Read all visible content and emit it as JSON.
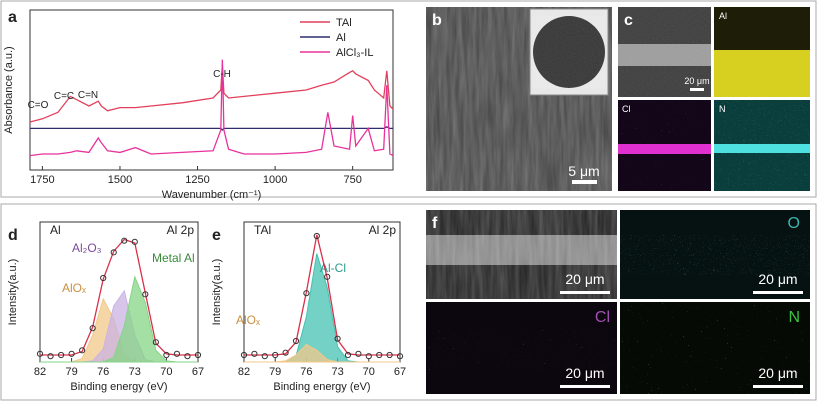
{
  "chart_data": [
    {
      "type": "line",
      "panel": "a",
      "xlabel": "Wavenumber (cm⁻¹)",
      "ylabel": "Absorbance (a.u.)",
      "x": [
        1790,
        1750,
        1700,
        1660,
        1640,
        1600,
        1570,
        1560,
        1540,
        1500,
        1450,
        1400,
        1300,
        1200,
        1175,
        1170,
        1165,
        1150,
        1100,
        1000,
        900,
        850,
        830,
        810,
        760,
        750,
        740,
        700,
        680,
        650,
        640,
        630,
        620
      ],
      "series": [
        {
          "name": "TAl",
          "color": "#e2405c",
          "values": [
            3.0,
            3.2,
            3.6,
            4.6,
            4.4,
            4.0,
            4.3,
            4.0,
            3.7,
            3.9,
            3.9,
            4.0,
            4.2,
            4.5,
            5.0,
            6.6,
            4.8,
            4.5,
            4.6,
            4.8,
            5.0,
            5.3,
            5.4,
            5.5,
            6.1,
            6.2,
            6.0,
            5.6,
            5.0,
            4.5,
            6.2,
            4.0,
            3.8
          ]
        },
        {
          "name": "Al",
          "color": "#2e2e6e",
          "values": [
            2.6,
            2.6,
            2.6,
            2.6,
            2.6,
            2.6,
            2.6,
            2.6,
            2.6,
            2.6,
            2.6,
            2.6,
            2.6,
            2.6,
            2.6,
            2.5,
            2.6,
            2.6,
            2.6,
            2.6,
            2.6,
            2.6,
            2.6,
            2.6,
            2.6,
            2.6,
            2.6,
            2.6,
            2.6,
            2.6,
            2.7,
            2.6,
            2.6
          ]
        },
        {
          "name": "AlCl₃-IL",
          "color": "#e8329c",
          "values": [
            0.9,
            1.0,
            1.0,
            1.1,
            1.2,
            1.1,
            2.0,
            1.7,
            1.2,
            1.1,
            1.4,
            1.0,
            1.1,
            1.2,
            2.5,
            6.9,
            2.5,
            1.3,
            1.0,
            1.0,
            1.1,
            1.3,
            3.6,
            1.5,
            1.3,
            3.4,
            1.5,
            2.6,
            1.2,
            1.3,
            5.3,
            1.0,
            0.9
          ]
        }
      ],
      "annotations": [
        "C=O",
        "C=C",
        "C=N",
        "C-H"
      ],
      "xlim": [
        1790,
        620
      ],
      "xticks": [
        1750,
        1500,
        1250,
        1000,
        750
      ],
      "ylim": [
        0,
        10
      ],
      "legend": "upper right"
    },
    {
      "type": "line",
      "panel": "d",
      "sample": "Al",
      "core_level": "Al 2p",
      "xlabel": "Binding energy (eV)",
      "ylabel": "Intensity(a.u.)",
      "x": [
        82,
        81,
        80,
        79,
        78,
        77,
        76,
        75,
        74,
        73,
        72,
        71,
        70,
        69,
        68,
        67
      ],
      "series": [
        {
          "name": "AlOₓ",
          "color": "#f2c88a",
          "fill": true,
          "values": [
            0,
            0,
            0,
            0,
            0.3,
            2.3,
            5.4,
            3.7,
            0.7,
            0,
            0,
            0,
            0,
            0,
            0,
            0
          ]
        },
        {
          "name": "Al₂O₃",
          "color": "#c9b3e3",
          "fill": true,
          "values": [
            0,
            0,
            0,
            0,
            0,
            0.1,
            1.1,
            4.8,
            6.1,
            2.3,
            0.2,
            0,
            0,
            0,
            0,
            0
          ]
        },
        {
          "name": "Metal Al",
          "color": "#86d486",
          "fill": true,
          "values": [
            0,
            0,
            0,
            0,
            0,
            0,
            0,
            0.4,
            3.1,
            7.3,
            5.1,
            1.0,
            0.1,
            0,
            0,
            0
          ]
        },
        {
          "color": "#d9304a",
          "values": [
            0.6,
            0.6,
            0.6,
            0.6,
            0.9,
            3.0,
            7.1,
            9.5,
            10.5,
            10.2,
            5.9,
            1.6,
            0.7,
            0.6,
            0.6,
            0.6
          ]
        },
        {
          "color": "#333333",
          "marker": "circle",
          "values": [
            0.7,
            0.5,
            0.6,
            0.7,
            1.0,
            2.9,
            7.2,
            9.4,
            10.4,
            10.3,
            5.8,
            1.7,
            0.6,
            0.7,
            0.5,
            0.6
          ]
        }
      ],
      "xlim": [
        82,
        67
      ],
      "xticks": [
        82,
        79,
        76,
        73,
        70,
        67
      ],
      "ylim": [
        0,
        12
      ]
    },
    {
      "type": "line",
      "panel": "e",
      "sample": "TAl",
      "core_level": "Al 2p",
      "xlabel": "Binding energy (eV)",
      "ylabel": "Intensity(a.u.)",
      "x": [
        82,
        81,
        80,
        79,
        78,
        77,
        76,
        75,
        74,
        73,
        72,
        71,
        70,
        69,
        68,
        67
      ],
      "series": [
        {
          "name": "Al-Cl",
          "color": "#45c2b2",
          "fill": true,
          "values": [
            0,
            0,
            0,
            0,
            0,
            0.5,
            3.9,
            9.3,
            6.4,
            1.3,
            0.1,
            0,
            0,
            0,
            0,
            0
          ]
        },
        {
          "name": "AlOₓ",
          "color": "#f2c88a",
          "fill": true,
          "values": [
            0,
            0,
            0,
            0,
            0.1,
            0.6,
            1.5,
            1.0,
            0.2,
            0,
            0,
            0,
            0,
            0,
            0,
            0
          ]
        },
        {
          "color": "#d9304a",
          "values": [
            0.6,
            0.6,
            0.6,
            0.6,
            0.7,
            1.7,
            6.0,
            10.9,
            7.2,
            1.9,
            0.7,
            0.6,
            0.6,
            0.6,
            0.6,
            0.6
          ]
        },
        {
          "color": "#333333",
          "marker": "circle",
          "values": [
            0.6,
            0.7,
            0.5,
            0.6,
            0.8,
            1.8,
            5.9,
            10.8,
            7.3,
            2.0,
            0.6,
            0.7,
            0.5,
            0.6,
            0.6,
            0.5
          ]
        }
      ],
      "xlim": [
        82,
        67
      ],
      "xticks": [
        82,
        79,
        76,
        73,
        70,
        67
      ],
      "ylim": [
        0,
        12
      ]
    }
  ],
  "images": {
    "b": {
      "panel": "b",
      "scale": "5 μm"
    },
    "c": {
      "panel": "c",
      "scale": "20 μm",
      "maps": [
        "Al",
        "Cl",
        "N"
      ]
    },
    "f": {
      "panel": "f",
      "scale": [
        "20 μm",
        "20 μm",
        "20 μm",
        "20 μm"
      ],
      "maps": [
        "O",
        "Cl",
        "N"
      ]
    }
  }
}
